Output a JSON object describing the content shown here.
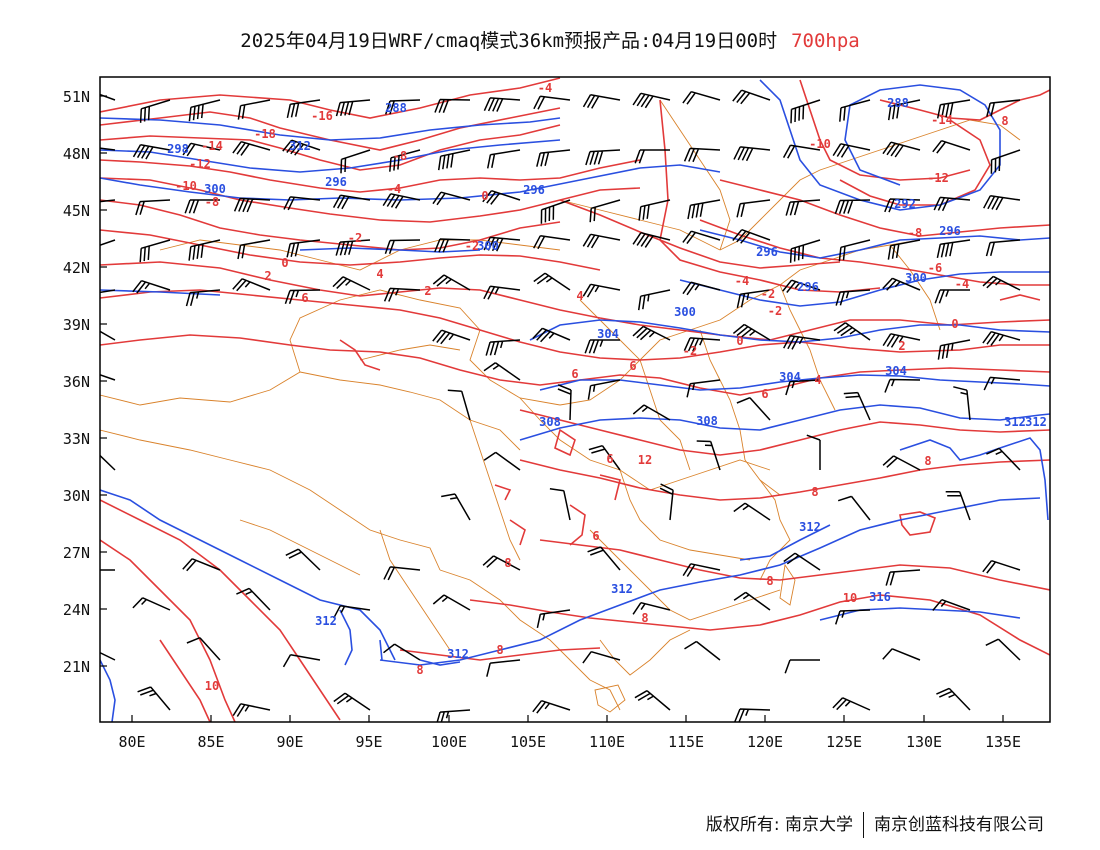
{
  "title": {
    "main": "2025年04月19日WRF/cmaq模式36km预报产品:04月19日00时",
    "level": "700hpa"
  },
  "axes": {
    "lat_labels": [
      "51N",
      "48N",
      "45N",
      "42N",
      "39N",
      "36N",
      "33N",
      "30N",
      "27N",
      "24N",
      "21N"
    ],
    "lon_labels": [
      "80E",
      "85E",
      "90E",
      "95E",
      "100E",
      "105E",
      "110E",
      "115E",
      "120E",
      "125E",
      "130E",
      "135E"
    ]
  },
  "footer": {
    "copyright": "版权所有: 南京大学",
    "company": "南京创蓝科技有限公司"
  },
  "colors": {
    "temperature": "#e23a3a",
    "geopotential": "#2a4fe0",
    "boundary": "#d9822b",
    "wind": "#000000",
    "frame": "#000000"
  },
  "contour_labels": {
    "temperature": [
      "-4",
      "-16",
      "-18",
      "-14",
      "-12",
      "-10",
      "-8",
      "-8",
      "-4",
      "0",
      "-2",
      "-2",
      "0",
      "2",
      "2",
      "4",
      "6",
      "6",
      "6",
      "-10",
      "-14",
      "-12",
      "-8",
      "-6",
      "-4",
      "-4",
      "-2",
      "-2",
      "-2",
      "0",
      "0",
      "2",
      "4",
      "6",
      "6",
      "6",
      "8",
      "8",
      "8",
      "8",
      "8",
      "8",
      "8",
      "8",
      "10",
      "10",
      "12",
      "4"
    ],
    "geopotential": [
      "288",
      "288",
      "296",
      "296",
      "298",
      "300",
      "300",
      "296",
      "296",
      "292",
      "296",
      "300",
      "300",
      "304",
      "304",
      "304",
      "308",
      "308",
      "312",
      "312",
      "312",
      "312",
      "312",
      "312",
      "316",
      "312"
    ]
  }
}
